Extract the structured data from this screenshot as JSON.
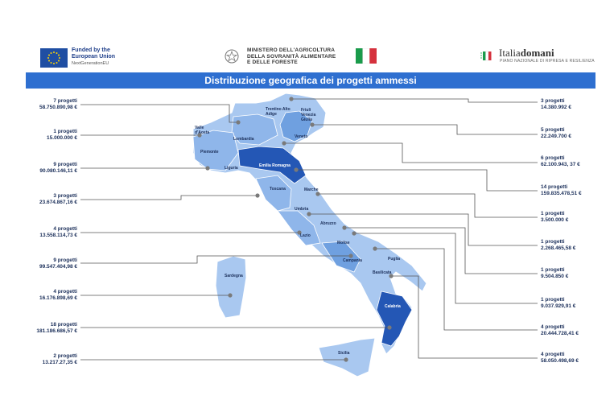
{
  "header": {
    "eu": {
      "line1": "Funded by the",
      "line2": "European Union",
      "line3": "NextGenerationEU"
    },
    "ministero": {
      "line1": "MINISTERO DELL'AGRICOLTURA",
      "line2": "DELLA SOVRANITÀ ALIMENTARE",
      "line3": "E DELLE FORESTE"
    },
    "italiadomani": {
      "name_a": "Italia",
      "name_b": "domani",
      "subtitle": "PIANO NAZIONALE DI RIPRESA E RESILIENZA"
    }
  },
  "title": "Distribuzione geografica dei progetti ammessi",
  "colors": {
    "band": "#2e6fd0",
    "light": "#a9c8f0",
    "mid": "#6fa0e0",
    "dark": "#2457b5",
    "line": "#555555",
    "dot": "#7a7a7a"
  },
  "left_labels": [
    {
      "count": "7 progetti",
      "amount": "58.750.890,98 €"
    },
    {
      "count": "1 progetti",
      "amount": "15.000.000 €"
    },
    {
      "count": "9 progetti",
      "amount": "90.080.146,11 €"
    },
    {
      "count": "3 progetti",
      "amount": "23.674.867,16 €"
    },
    {
      "count": "4 progetti",
      "amount": "13.558.114,73 €"
    },
    {
      "count": "9 progetti",
      "amount": "99.547.404,98 €"
    },
    {
      "count": "4 progetti",
      "amount": "16.176.898,69 €"
    },
    {
      "count": "18 progetti",
      "amount": "181.186.686,57 €"
    },
    {
      "count": "2 progetti",
      "amount": "13.217.27,35 €"
    }
  ],
  "right_labels": [
    {
      "count": "3 progetti",
      "amount": "14.380.992 €"
    },
    {
      "count": "5 progetti",
      "amount": "22.249.700 €"
    },
    {
      "count": "6 progetti",
      "amount": "62.100.943, 37 €"
    },
    {
      "count": "14 progetti",
      "amount": "159.835.478,51 €"
    },
    {
      "count": "1 progetti",
      "amount": "3.500.000 €"
    },
    {
      "count": "1 progetti",
      "amount": "2.268.465,58 €"
    },
    {
      "count": "1 progetti",
      "amount": "9.504.850 €"
    },
    {
      "count": "1 progetti",
      "amount": "9.037.929,91 €"
    },
    {
      "count": "4 progetti",
      "amount": "20.444.728,41 €"
    },
    {
      "count": "4 progetti",
      "amount": "58.050.498,69 €"
    }
  ],
  "regions": {
    "trentino": "Trentino Alto Adige",
    "friuli": "Friuli Venezia Giulia",
    "valle": "Valle d'Aosta",
    "lombardia": "Lombardia",
    "veneto": "Veneto",
    "piemonte": "Piemonte",
    "liguria": "Liguria",
    "emilia": "Emilia Romagna",
    "toscana": "Toscana",
    "marche": "Marche",
    "umbria": "Umbria",
    "abruzzo": "Abruzzo",
    "lazio": "Lazio",
    "molise": "Molise",
    "campania": "Campania",
    "puglia": "Puglia",
    "basilicata": "Basilicata",
    "sardegna": "Sardegna",
    "calabria": "Calabria",
    "sicilia": "Sicilia"
  }
}
